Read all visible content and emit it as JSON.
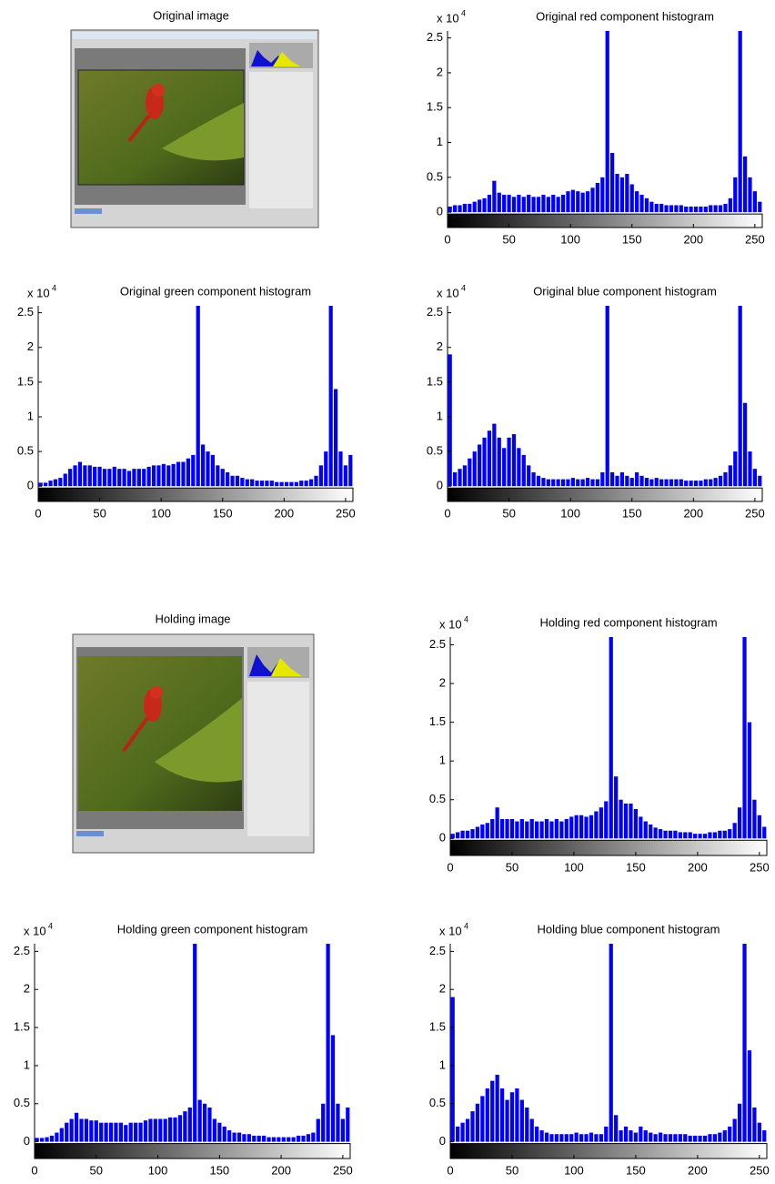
{
  "chart_data": [
    {
      "type": "image",
      "title": "Original image"
    },
    {
      "type": "histogram",
      "title": "Original red component histogram",
      "y_multiplier": "x 10",
      "y_exponent": "4",
      "color": "#0000ff",
      "bins": [
        0,
        4,
        8,
        12,
        16,
        20,
        24,
        28,
        32,
        36,
        40,
        44,
        48,
        52,
        56,
        60,
        64,
        68,
        72,
        76,
        80,
        84,
        88,
        92,
        96,
        100,
        104,
        108,
        112,
        116,
        120,
        124,
        128,
        132,
        136,
        140,
        144,
        148,
        152,
        156,
        160,
        164,
        168,
        172,
        176,
        180,
        184,
        188,
        192,
        196,
        200,
        204,
        208,
        212,
        216,
        220,
        224,
        228,
        232,
        236,
        240,
        244,
        248,
        252,
        256
      ],
      "values": [
        0.08,
        0.1,
        0.1,
        0.12,
        0.12,
        0.15,
        0.18,
        0.2,
        0.25,
        0.45,
        0.28,
        0.25,
        0.25,
        0.22,
        0.25,
        0.22,
        0.25,
        0.22,
        0.22,
        0.25,
        0.22,
        0.25,
        0.22,
        0.25,
        0.3,
        0.32,
        0.3,
        0.28,
        0.3,
        0.35,
        0.42,
        0.5,
        2.6,
        0.85,
        0.55,
        0.5,
        0.55,
        0.4,
        0.3,
        0.25,
        0.2,
        0.15,
        0.12,
        0.12,
        0.1,
        0.1,
        0.1,
        0.1,
        0.08,
        0.08,
        0.08,
        0.08,
        0.08,
        0.1,
        0.1,
        0.1,
        0.12,
        0.2,
        0.5,
        2.6,
        0.8,
        0.5,
        0.3,
        0.15
      ],
      "xlim": [
        0,
        256
      ],
      "xticks": [
        0,
        50,
        100,
        150,
        200,
        250
      ],
      "ylim": [
        -0.22,
        2.6
      ],
      "yticks": [
        0,
        0.5,
        1,
        1.5,
        2,
        2.5
      ]
    },
    {
      "type": "histogram",
      "title": "Original green component histogram",
      "y_multiplier": "x 10",
      "y_exponent": "4",
      "color": "#0000ff",
      "bins": [
        0,
        4,
        8,
        12,
        16,
        20,
        24,
        28,
        32,
        36,
        40,
        44,
        48,
        52,
        56,
        60,
        64,
        68,
        72,
        76,
        80,
        84,
        88,
        92,
        96,
        100,
        104,
        108,
        112,
        116,
        120,
        124,
        128,
        132,
        136,
        140,
        144,
        148,
        152,
        156,
        160,
        164,
        168,
        172,
        176,
        180,
        184,
        188,
        192,
        196,
        200,
        204,
        208,
        212,
        216,
        220,
        224,
        228,
        232,
        236,
        240,
        244,
        248,
        252,
        256
      ],
      "values": [
        0.05,
        0.05,
        0.08,
        0.1,
        0.12,
        0.18,
        0.25,
        0.3,
        0.35,
        0.3,
        0.3,
        0.28,
        0.28,
        0.25,
        0.25,
        0.28,
        0.25,
        0.25,
        0.22,
        0.25,
        0.25,
        0.25,
        0.28,
        0.3,
        0.3,
        0.32,
        0.3,
        0.32,
        0.35,
        0.35,
        0.4,
        0.45,
        2.6,
        0.6,
        0.5,
        0.45,
        0.3,
        0.25,
        0.2,
        0.15,
        0.15,
        0.12,
        0.1,
        0.1,
        0.08,
        0.08,
        0.08,
        0.08,
        0.06,
        0.06,
        0.06,
        0.06,
        0.06,
        0.08,
        0.08,
        0.1,
        0.15,
        0.3,
        0.5,
        2.6,
        1.4,
        0.5,
        0.3,
        0.45
      ],
      "xlim": [
        0,
        256
      ],
      "xticks": [
        0,
        50,
        100,
        150,
        200,
        250
      ],
      "ylim": [
        -0.22,
        2.6
      ],
      "yticks": [
        0,
        0.5,
        1,
        1.5,
        2,
        2.5
      ]
    },
    {
      "type": "histogram",
      "title": "Original blue component histogram",
      "y_multiplier": "x 10",
      "y_exponent": "4",
      "color": "#0000ff",
      "bins": [
        0,
        4,
        8,
        12,
        16,
        20,
        24,
        28,
        32,
        36,
        40,
        44,
        48,
        52,
        56,
        60,
        64,
        68,
        72,
        76,
        80,
        84,
        88,
        92,
        96,
        100,
        104,
        108,
        112,
        116,
        120,
        124,
        128,
        132,
        136,
        140,
        144,
        148,
        152,
        156,
        160,
        164,
        168,
        172,
        176,
        180,
        184,
        188,
        192,
        196,
        200,
        204,
        208,
        212,
        216,
        220,
        224,
        228,
        232,
        236,
        240,
        244,
        248,
        252,
        256
      ],
      "values": [
        1.9,
        0.2,
        0.25,
        0.3,
        0.4,
        0.5,
        0.6,
        0.7,
        0.8,
        0.9,
        0.7,
        0.55,
        0.7,
        0.75,
        0.55,
        0.45,
        0.3,
        0.2,
        0.15,
        0.12,
        0.1,
        0.1,
        0.1,
        0.1,
        0.1,
        0.12,
        0.1,
        0.1,
        0.12,
        0.1,
        0.1,
        0.2,
        2.6,
        0.2,
        0.15,
        0.2,
        0.15,
        0.12,
        0.2,
        0.15,
        0.12,
        0.1,
        0.12,
        0.1,
        0.1,
        0.1,
        0.1,
        0.1,
        0.08,
        0.08,
        0.08,
        0.08,
        0.1,
        0.1,
        0.12,
        0.15,
        0.2,
        0.3,
        0.5,
        2.6,
        1.2,
        0.5,
        0.25,
        0.15
      ],
      "xlim": [
        0,
        256
      ],
      "xticks": [
        0,
        50,
        100,
        150,
        200,
        250
      ],
      "ylim": [
        -0.22,
        2.6
      ],
      "yticks": [
        0,
        0.5,
        1,
        1.5,
        2,
        2.5
      ]
    },
    {
      "type": "image",
      "title": "Holding image"
    },
    {
      "type": "histogram",
      "title": "Holding red component histogram",
      "y_multiplier": "x 10",
      "y_exponent": "4",
      "color": "#0000ff",
      "bins": [
        0,
        4,
        8,
        12,
        16,
        20,
        24,
        28,
        32,
        36,
        40,
        44,
        48,
        52,
        56,
        60,
        64,
        68,
        72,
        76,
        80,
        84,
        88,
        92,
        96,
        100,
        104,
        108,
        112,
        116,
        120,
        124,
        128,
        132,
        136,
        140,
        144,
        148,
        152,
        156,
        160,
        164,
        168,
        172,
        176,
        180,
        184,
        188,
        192,
        196,
        200,
        204,
        208,
        212,
        216,
        220,
        224,
        228,
        232,
        236,
        240,
        244,
        248,
        252,
        256
      ],
      "values": [
        0.06,
        0.08,
        0.1,
        0.1,
        0.12,
        0.15,
        0.18,
        0.2,
        0.25,
        0.4,
        0.25,
        0.25,
        0.25,
        0.22,
        0.25,
        0.22,
        0.25,
        0.22,
        0.22,
        0.25,
        0.22,
        0.25,
        0.22,
        0.25,
        0.28,
        0.3,
        0.3,
        0.28,
        0.3,
        0.35,
        0.4,
        0.48,
        2.6,
        0.8,
        0.5,
        0.45,
        0.45,
        0.38,
        0.28,
        0.22,
        0.18,
        0.14,
        0.12,
        0.1,
        0.1,
        0.1,
        0.08,
        0.08,
        0.08,
        0.06,
        0.06,
        0.06,
        0.08,
        0.08,
        0.1,
        0.1,
        0.12,
        0.2,
        0.4,
        2.6,
        1.5,
        0.5,
        0.3,
        0.15
      ],
      "xlim": [
        0,
        256
      ],
      "xticks": [
        0,
        50,
        100,
        150,
        200,
        250
      ],
      "ylim": [
        -0.22,
        2.6
      ],
      "yticks": [
        0,
        0.5,
        1,
        1.5,
        2,
        2.5
      ]
    },
    {
      "type": "histogram",
      "title": "Holding green component histogram",
      "y_multiplier": "x 10",
      "y_exponent": "4",
      "color": "#0000ff",
      "bins": [
        0,
        4,
        8,
        12,
        16,
        20,
        24,
        28,
        32,
        36,
        40,
        44,
        48,
        52,
        56,
        60,
        64,
        68,
        72,
        76,
        80,
        84,
        88,
        92,
        96,
        100,
        104,
        108,
        112,
        116,
        120,
        124,
        128,
        132,
        136,
        140,
        144,
        148,
        152,
        156,
        160,
        164,
        168,
        172,
        176,
        180,
        184,
        188,
        192,
        196,
        200,
        204,
        208,
        212,
        216,
        220,
        224,
        228,
        232,
        236,
        240,
        244,
        248,
        252,
        256
      ],
      "values": [
        0.05,
        0.05,
        0.06,
        0.08,
        0.12,
        0.18,
        0.25,
        0.3,
        0.38,
        0.3,
        0.3,
        0.28,
        0.28,
        0.25,
        0.25,
        0.25,
        0.25,
        0.25,
        0.22,
        0.25,
        0.25,
        0.25,
        0.28,
        0.3,
        0.3,
        0.3,
        0.3,
        0.32,
        0.32,
        0.35,
        0.4,
        0.45,
        2.6,
        0.55,
        0.5,
        0.45,
        0.3,
        0.25,
        0.2,
        0.15,
        0.12,
        0.12,
        0.1,
        0.1,
        0.08,
        0.08,
        0.08,
        0.06,
        0.06,
        0.06,
        0.06,
        0.06,
        0.06,
        0.08,
        0.08,
        0.1,
        0.12,
        0.3,
        0.5,
        2.6,
        1.4,
        0.5,
        0.3,
        0.45
      ],
      "xlim": [
        0,
        256
      ],
      "xticks": [
        0,
        50,
        100,
        150,
        200,
        250
      ],
      "ylim": [
        -0.22,
        2.6
      ],
      "yticks": [
        0,
        0.5,
        1,
        1.5,
        2,
        2.5
      ]
    },
    {
      "type": "histogram",
      "title": "Holding blue component histogram",
      "y_multiplier": "x 10",
      "y_exponent": "4",
      "color": "#0000ff",
      "bins": [
        0,
        4,
        8,
        12,
        16,
        20,
        24,
        28,
        32,
        36,
        40,
        44,
        48,
        52,
        56,
        60,
        64,
        68,
        72,
        76,
        80,
        84,
        88,
        92,
        96,
        100,
        104,
        108,
        112,
        116,
        120,
        124,
        128,
        132,
        136,
        140,
        144,
        148,
        152,
        156,
        160,
        164,
        168,
        172,
        176,
        180,
        184,
        188,
        192,
        196,
        200,
        204,
        208,
        212,
        216,
        220,
        224,
        228,
        232,
        236,
        240,
        244,
        248,
        252,
        256
      ],
      "values": [
        1.9,
        0.2,
        0.25,
        0.3,
        0.4,
        0.5,
        0.6,
        0.7,
        0.8,
        0.88,
        0.7,
        0.55,
        0.65,
        0.7,
        0.55,
        0.45,
        0.3,
        0.2,
        0.15,
        0.12,
        0.1,
        0.1,
        0.1,
        0.1,
        0.1,
        0.12,
        0.1,
        0.1,
        0.12,
        0.1,
        0.1,
        0.2,
        2.6,
        0.35,
        0.15,
        0.2,
        0.15,
        0.12,
        0.2,
        0.15,
        0.12,
        0.1,
        0.12,
        0.1,
        0.1,
        0.1,
        0.1,
        0.1,
        0.08,
        0.08,
        0.08,
        0.08,
        0.1,
        0.1,
        0.12,
        0.15,
        0.2,
        0.3,
        0.5,
        2.6,
        1.2,
        0.45,
        0.25,
        0.15
      ],
      "xlim": [
        0,
        256
      ],
      "xticks": [
        0,
        50,
        100,
        150,
        200,
        250
      ],
      "ylim": [
        -0.22,
        2.6
      ],
      "yticks": [
        0,
        0.5,
        1,
        1.5,
        2,
        2.5
      ]
    }
  ]
}
